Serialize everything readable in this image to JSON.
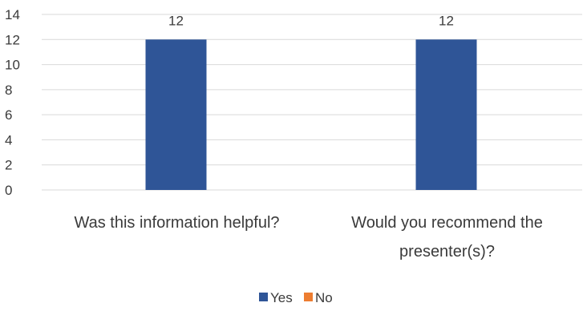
{
  "chart_data": {
    "type": "bar",
    "categories": [
      [
        "Was this information helpful?"
      ],
      [
        "Would you recommend the",
        "presenter(s)?"
      ]
    ],
    "series": [
      {
        "name": "Yes",
        "values": [
          12,
          12
        ],
        "color": "#2f5597"
      },
      {
        "name": "No",
        "values": [
          null,
          null
        ],
        "color": "#ed7d31"
      }
    ],
    "data_labels": [
      "12",
      "12"
    ],
    "ylim": [
      0,
      14
    ],
    "yticks": [
      0,
      2,
      4,
      6,
      8,
      10,
      12,
      14
    ],
    "grid": true,
    "legend_position": "bottom"
  }
}
